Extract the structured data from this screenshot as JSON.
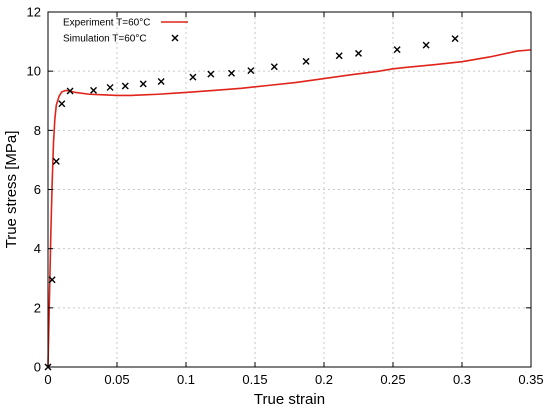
{
  "chart_data": {
    "type": "line",
    "title": "",
    "xlabel": "True strain",
    "ylabel": "True stress [MPa]",
    "xlim": [
      0,
      0.35
    ],
    "ylim": [
      0,
      12
    ],
    "xticks": [
      0,
      0.05,
      0.1,
      0.15,
      0.2,
      0.25,
      0.3,
      0.35
    ],
    "xtick_labels": [
      "0",
      "0.05",
      "0.1",
      "0.15",
      "0.2",
      "0.25",
      "0.3",
      "0.35"
    ],
    "yticks": [
      0,
      2,
      4,
      6,
      8,
      10,
      12
    ],
    "ytick_labels": [
      "0",
      "2",
      "4",
      "6",
      "8",
      "10",
      "12"
    ],
    "grid": true,
    "legend_position": "top-left",
    "series": [
      {
        "name": "Experiment T=60°C",
        "style": "line",
        "color": "#e0241b",
        "x": [
          0,
          0.001,
          0.002,
          0.003,
          0.004,
          0.005,
          0.006,
          0.008,
          0.01,
          0.013,
          0.016,
          0.02,
          0.03,
          0.04,
          0.05,
          0.06,
          0.07,
          0.08,
          0.09,
          0.1,
          0.12,
          0.14,
          0.16,
          0.18,
          0.2,
          0.22,
          0.24,
          0.25,
          0.26,
          0.28,
          0.3,
          0.32,
          0.34,
          0.35
        ],
        "y": [
          0,
          2.2,
          4.4,
          6.2,
          7.6,
          8.4,
          8.85,
          9.15,
          9.3,
          9.35,
          9.33,
          9.28,
          9.22,
          9.2,
          9.18,
          9.18,
          9.2,
          9.22,
          9.25,
          9.28,
          9.35,
          9.42,
          9.52,
          9.62,
          9.75,
          9.88,
          10.0,
          10.08,
          10.13,
          10.22,
          10.32,
          10.48,
          10.68,
          10.72
        ]
      },
      {
        "name": "Simulation T=60°C",
        "style": "marker-x",
        "color": "#000000",
        "x": [
          0,
          0.003,
          0.006,
          0.01,
          0.016,
          0.033,
          0.045,
          0.056,
          0.069,
          0.082,
          0.105,
          0.118,
          0.133,
          0.147,
          0.164,
          0.187,
          0.211,
          0.225,
          0.253,
          0.274,
          0.295
        ],
        "y": [
          0,
          2.95,
          6.95,
          8.9,
          9.33,
          9.35,
          9.45,
          9.5,
          9.57,
          9.65,
          9.8,
          9.9,
          9.93,
          10.02,
          10.15,
          10.33,
          10.52,
          10.6,
          10.73,
          10.88,
          11.1
        ]
      }
    ]
  }
}
